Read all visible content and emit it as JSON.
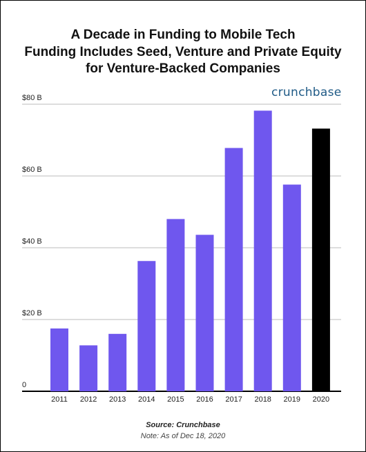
{
  "title_lines": [
    "A Decade in Funding to Mobile Tech",
    "Funding Includes Seed, Venture and Private Equity",
    "for Venture-Backed Companies"
  ],
  "brand": "crunchbase",
  "source": "Source: Crunchbase",
  "note": "Note: As of Dec 18, 2020",
  "colors": {
    "bar": "#6f57ee",
    "highlight": "#000000",
    "grid": "#bbbbbb",
    "brand": "#1f5a86"
  },
  "chart_data": {
    "type": "bar",
    "categories": [
      "2011",
      "2012",
      "2013",
      "2014",
      "2015",
      "2016",
      "2017",
      "2018",
      "2019",
      "2020"
    ],
    "values": [
      17.5,
      12.8,
      16.0,
      36.3,
      48.0,
      43.6,
      67.8,
      78.2,
      57.6,
      73.2
    ],
    "highlight_category": "2020",
    "ylim": [
      0,
      80
    ],
    "yticks": [
      0,
      20,
      40,
      60,
      80
    ],
    "ytick_labels": [
      "0",
      "$20 B",
      "$40 B",
      "$60 B",
      "$80 B"
    ],
    "grid": true
  }
}
